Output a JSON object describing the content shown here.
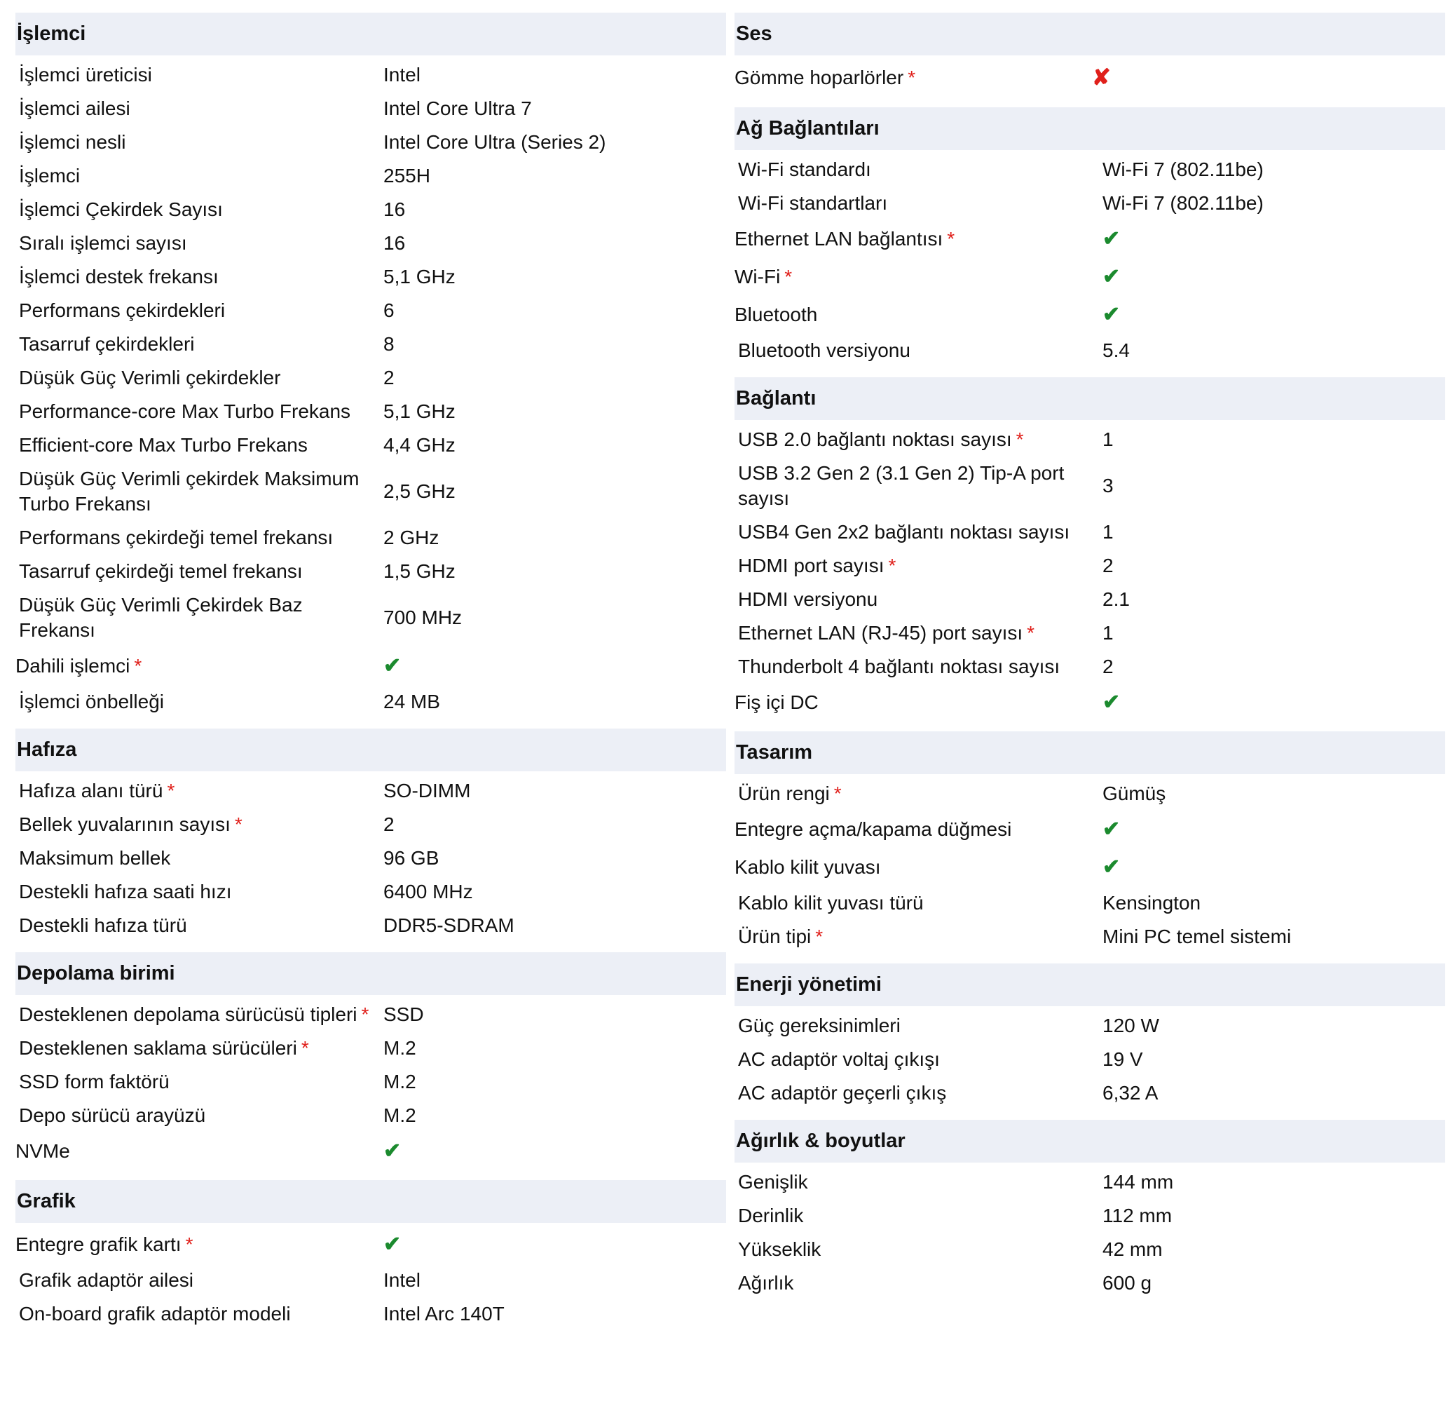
{
  "colors": {
    "header_bg": "#eceff6",
    "check": "#1b8a2e",
    "cross": "#e0201b",
    "required": "#e0201b"
  },
  "icons": {
    "check": "check-icon",
    "cross": "cross-icon"
  },
  "columns": [
    {
      "sections": [
        {
          "title": "İşlemci",
          "rows": [
            {
              "label": "İşlemci üreticisi",
              "value": "Intel"
            },
            {
              "label": "İşlemci ailesi",
              "value": "Intel Core Ultra 7"
            },
            {
              "label": "İşlemci nesli",
              "value": "Intel Core Ultra (Series 2)"
            },
            {
              "label": "İşlemci",
              "value": "255H"
            },
            {
              "label": "İşlemci Çekirdek Sayısı",
              "value": "16"
            },
            {
              "label": "Sıralı işlemci sayısı",
              "value": "16"
            },
            {
              "label": "İşlemci destek frekansı",
              "value": "5,1 GHz"
            },
            {
              "label": "Performans çekirdekleri",
              "value": "6"
            },
            {
              "label": "Tasarruf çekirdekleri",
              "value": "8"
            },
            {
              "label": "Düşük Güç Verimli çekirdekler",
              "value": "2"
            },
            {
              "label": "Performance-core Max Turbo Frekans",
              "value": "5,1 GHz"
            },
            {
              "label": "Efficient-core Max Turbo Frekans",
              "value": "4,4 GHz"
            },
            {
              "label": "Düşük Güç Verimli çekirdek Maksimum Turbo Frekansı",
              "value": "2,5 GHz"
            },
            {
              "label": "Performans çekirdeği temel frekansı",
              "value": "2 GHz"
            },
            {
              "label": "Tasarruf çekirdeği temel frekansı",
              "value": "1,5 GHz"
            },
            {
              "label": "Düşük Güç Verimli Çekirdek Baz Frekansı",
              "value": "700 MHz"
            },
            {
              "label": "Dahili işlemci",
              "required": "*",
              "icon": "check",
              "symbol": "✔"
            },
            {
              "label": "İşlemci önbelleği",
              "value": "24 MB"
            }
          ]
        },
        {
          "title": "Hafıza",
          "rows": [
            {
              "label": "Hafıza alanı türü",
              "required": "*",
              "value": "SO-DIMM"
            },
            {
              "label": "Bellek yuvalarının sayısı",
              "required": "*",
              "value": "2"
            },
            {
              "label": "Maksimum bellek",
              "value": "96 GB"
            },
            {
              "label": "Destekli hafıza saati hızı",
              "value": "6400 MHz"
            },
            {
              "label": "Destekli hafıza türü",
              "value": "DDR5-SDRAM"
            }
          ]
        },
        {
          "title": "Depolama birimi",
          "rows": [
            {
              "label": "Desteklenen depolama sürücüsü tipleri",
              "required": "*",
              "value": "SSD"
            },
            {
              "label": "Desteklenen saklama sürücüleri",
              "required": "*",
              "value": "M.2"
            },
            {
              "label": "SSD form faktörü",
              "value": "M.2"
            },
            {
              "label": "Depo sürücü arayüzü",
              "value": "M.2"
            },
            {
              "label": "NVMe",
              "icon": "check",
              "symbol": "✔"
            }
          ]
        },
        {
          "title": "Grafik",
          "rows": [
            {
              "label": "Entegre grafik kartı",
              "required": "*",
              "icon": "check",
              "symbol": "✔"
            },
            {
              "label": "Grafik adaptör ailesi",
              "value": "Intel"
            },
            {
              "label": "On-board grafik adaptör modeli",
              "value": "Intel Arc 140T"
            }
          ]
        }
      ]
    },
    {
      "sections": [
        {
          "title": "Ses",
          "rows": [
            {
              "label": "Gömme hoparlörler",
              "required": "*",
              "icon": "cross",
              "symbol": "✘"
            }
          ]
        },
        {
          "title": "Ağ Bağlantıları",
          "rows": [
            {
              "label": "Wi-Fi standardı",
              "value": "Wi-Fi 7 (802.11be)"
            },
            {
              "label": "Wi-Fi standartları",
              "value": "Wi-Fi 7 (802.11be)"
            },
            {
              "label": "Ethernet LAN bağlantısı",
              "required": "*",
              "icon": "check",
              "symbol": "✔"
            },
            {
              "label": "Wi-Fi",
              "required": "*",
              "icon": "check",
              "symbol": "✔"
            },
            {
              "label": "Bluetooth",
              "icon": "check",
              "symbol": "✔"
            },
            {
              "label": "Bluetooth versiyonu",
              "value": "5.4"
            }
          ]
        },
        {
          "title": "Bağlantı",
          "rows": [
            {
              "label": "USB 2.0 bağlantı noktası sayısı",
              "required": "*",
              "value": "1"
            },
            {
              "label": "USB 3.2 Gen 2 (3.1 Gen 2) Tip-A port sayısı",
              "value": "3"
            },
            {
              "label": "USB4 Gen 2x2 bağlantı noktası sayısı",
              "value": "1"
            },
            {
              "label": "HDMI port sayısı",
              "required": "*",
              "value": "2"
            },
            {
              "label": "HDMI versiyonu",
              "value": "2.1"
            },
            {
              "label": "Ethernet LAN (RJ-45) port sayısı",
              "required": "*",
              "value": "1"
            },
            {
              "label": "Thunderbolt 4 bağlantı noktası sayısı",
              "value": "2"
            },
            {
              "label": "Fiş içi DC",
              "icon": "check",
              "symbol": "✔"
            }
          ]
        },
        {
          "title": "Tasarım",
          "rows": [
            {
              "label": "Ürün rengi",
              "required": "*",
              "value": "Gümüş"
            },
            {
              "label": "Entegre açma/kapama düğmesi",
              "icon": "check",
              "symbol": "✔"
            },
            {
              "label": "Kablo kilit yuvası",
              "icon": "check",
              "symbol": "✔"
            },
            {
              "label": "Kablo kilit yuvası türü",
              "value": "Kensington"
            },
            {
              "label": "Ürün tipi",
              "required": "*",
              "value": "Mini PC temel sistemi"
            }
          ]
        },
        {
          "title": "Enerji yönetimi",
          "rows": [
            {
              "label": "Güç gereksinimleri",
              "value": "120 W"
            },
            {
              "label": "AC adaptör voltaj çıkışı",
              "value": "19 V"
            },
            {
              "label": "AC adaptör geçerli çıkış",
              "value": "6,32 A"
            }
          ]
        },
        {
          "title": "Ağırlık & boyutlar",
          "rows": [
            {
              "label": "Genişlik",
              "value": "144 mm"
            },
            {
              "label": "Derinlik",
              "value": "112 mm"
            },
            {
              "label": "Yükseklik",
              "value": "42 mm"
            },
            {
              "label": "Ağırlık",
              "value": "600 g"
            }
          ]
        }
      ]
    }
  ]
}
